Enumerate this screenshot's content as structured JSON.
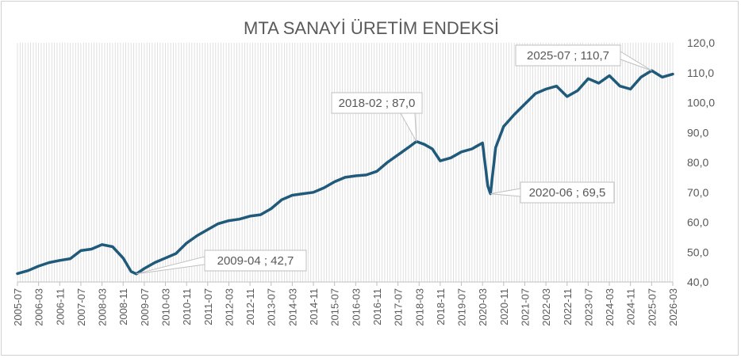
{
  "chart_data": {
    "type": "line",
    "title": "MTA SANAYİ ÜRETİM ENDEKSİ",
    "xlabel": "",
    "ylabel": "",
    "ylim": [
      40,
      120
    ],
    "yticks": [
      "40,0",
      "50,0",
      "60,0",
      "70,0",
      "80,0",
      "90,0",
      "100,0",
      "110,0",
      "120,0"
    ],
    "xticks": [
      "2005-07",
      "2006-03",
      "2006-11",
      "2007-07",
      "2008-03",
      "2008-11",
      "2009-07",
      "2010-03",
      "2010-11",
      "2011-07",
      "2012-03",
      "2012-11",
      "2013-07",
      "2014-03",
      "2014-11",
      "2015-07",
      "2016-03",
      "2016-11",
      "2017-07",
      "2018-03",
      "2018-11",
      "2019-07",
      "2020-03",
      "2020-11",
      "2021-07",
      "2022-03",
      "2022-11",
      "2023-07",
      "2024-03",
      "2024-11",
      "2025-07",
      "2026-03"
    ],
    "grid": "vertical monthly gridlines",
    "colors": {
      "line": "#1f5a7a",
      "grid": "#d9d9d9",
      "text": "#595959"
    },
    "series": [
      {
        "x": [
          "2005-07",
          "2005-11",
          "2006-03",
          "2006-07",
          "2006-11",
          "2007-03",
          "2007-07",
          "2007-11",
          "2008-03",
          "2008-07",
          "2008-11",
          "2009-02",
          "2009-04",
          "2009-07",
          "2009-11",
          "2010-03",
          "2010-07",
          "2010-11",
          "2011-03",
          "2011-07",
          "2011-11",
          "2012-03",
          "2012-07",
          "2012-11",
          "2013-03",
          "2013-07",
          "2013-11",
          "2014-03",
          "2014-07",
          "2014-11",
          "2015-03",
          "2015-07",
          "2015-11",
          "2016-03",
          "2016-07",
          "2016-11",
          "2017-03",
          "2017-07",
          "2017-11",
          "2018-02",
          "2018-05",
          "2018-08",
          "2018-11",
          "2019-03",
          "2019-07",
          "2019-11",
          "2020-01",
          "2020-03",
          "2020-05",
          "2020-06",
          "2020-08",
          "2020-11",
          "2021-03",
          "2021-07",
          "2021-11",
          "2022-03",
          "2022-07",
          "2022-11",
          "2023-03",
          "2023-07",
          "2023-11",
          "2024-03",
          "2024-07",
          "2024-11",
          "2025-03",
          "2025-07",
          "2025-11",
          "2026-03"
        ],
        "values": [
          42.8,
          43.8,
          45.3,
          46.5,
          47.2,
          47.8,
          50.5,
          51.0,
          52.5,
          51.8,
          48.0,
          43.5,
          42.7,
          44.5,
          46.5,
          48.0,
          49.5,
          53.0,
          55.5,
          57.5,
          59.5,
          60.5,
          61.0,
          62.0,
          62.5,
          64.5,
          67.5,
          69.0,
          69.5,
          70.0,
          71.5,
          73.5,
          75.0,
          75.5,
          75.8,
          77.0,
          80.0,
          82.5,
          85.0,
          87.0,
          86.0,
          84.5,
          80.5,
          81.5,
          83.5,
          84.5,
          85.5,
          86.5,
          72.0,
          69.5,
          85.0,
          92.0,
          96.0,
          99.5,
          103.0,
          104.5,
          105.5,
          102.0,
          104.0,
          108.0,
          106.5,
          109.0,
          105.5,
          104.5,
          108.5,
          110.7,
          108.5,
          109.5
        ]
      }
    ],
    "annotations": [
      {
        "label": "2025-07 ; 110,7",
        "x": "2025-07",
        "y": 110.7
      },
      {
        "label": "2018-02 ; 87,0",
        "x": "2018-02",
        "y": 87.0
      },
      {
        "label": "2020-06 ; 69,5",
        "x": "2020-06",
        "y": 69.5
      },
      {
        "label": "2009-04 ; 42,7",
        "x": "2009-04",
        "y": 42.7
      }
    ]
  }
}
